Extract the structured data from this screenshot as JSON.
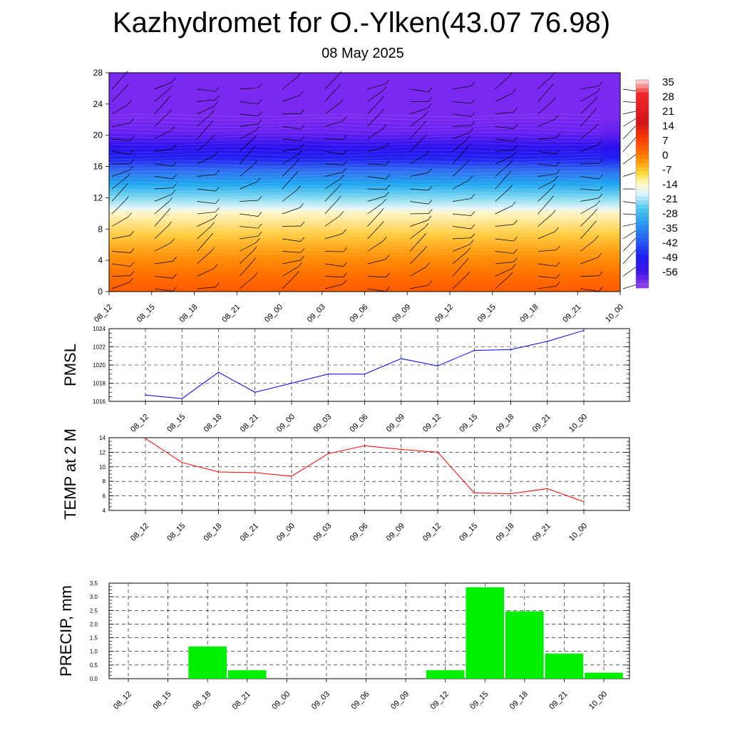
{
  "header": {
    "title": "Kazhydromet for O.-Ylken(43.07 76.98)",
    "date": "08 May 2025"
  },
  "x_labels": [
    "08_12",
    "08_15",
    "08_18",
    "08_21",
    "09_00",
    "09_03",
    "09_06",
    "09_09",
    "09_12",
    "09_15",
    "09_18",
    "09_21",
    "10_00"
  ],
  "colors": {
    "pmsl_line": "#0000ff",
    "temp_line": "#ff0000",
    "precip_bar": "#00ee00"
  },
  "chart_data": [
    {
      "type": "heatmap",
      "x_labels": [
        "08_12",
        "08_15",
        "08_18",
        "08_21",
        "09_00",
        "09_03",
        "09_06",
        "09_09",
        "09_12",
        "09_15",
        "09_18",
        "09_21",
        "10_00"
      ],
      "y_ticks": [
        "0",
        "4",
        "8",
        "12",
        "16",
        "20",
        "24",
        "28"
      ],
      "ylim": [
        0,
        28
      ],
      "colorbar_labels": [
        "35",
        "28",
        "21",
        "14",
        "7",
        "0",
        "-7",
        "-14",
        "-21",
        "-28",
        "-35",
        "-42",
        "-49",
        "-56"
      ],
      "overlay": "wind barbs"
    },
    {
      "type": "line",
      "ylabel": "PMSL",
      "ylim": [
        1016,
        1024
      ],
      "y_ticks": [
        "1016",
        "1018",
        "1020",
        "1022",
        "1024"
      ],
      "categories": [
        "08_12",
        "08_15",
        "08_18",
        "08_21",
        "09_00",
        "09_03",
        "09_06",
        "09_09",
        "09_12",
        "09_15",
        "09_18",
        "09_21",
        "10_00"
      ],
      "values": [
        1016.7,
        1016.3,
        1019.2,
        1017.0,
        1018.0,
        1019.0,
        1019.0,
        1020.7,
        1019.9,
        1021.6,
        1021.7,
        1022.6,
        1023.8
      ]
    },
    {
      "type": "line",
      "ylabel": "TEMP at 2 M",
      "ylim": [
        4,
        14
      ],
      "y_ticks": [
        "4",
        "6",
        "8",
        "10",
        "12",
        "14"
      ],
      "categories": [
        "08_12",
        "08_15",
        "08_18",
        "08_21",
        "09_00",
        "09_03",
        "09_06",
        "09_09",
        "09_12",
        "09_15",
        "09_18",
        "09_21",
        "10_00"
      ],
      "values": [
        13.9,
        10.6,
        9.3,
        9.2,
        8.7,
        11.8,
        12.9,
        12.4,
        12.0,
        6.4,
        6.3,
        7.0,
        5.2
      ]
    },
    {
      "type": "bar",
      "ylabel": "PRECIP, mm",
      "ylim": [
        0,
        3.5
      ],
      "y_ticks": [
        "0.0",
        "0.5",
        "1.0",
        "1.5",
        "2.0",
        "2.5",
        "3.0",
        "3.5"
      ],
      "categories": [
        "08_12",
        "08_15",
        "08_18",
        "08_21",
        "09_00",
        "09_03",
        "09_06",
        "09_09",
        "09_12",
        "09_15",
        "09_18",
        "09_21",
        "10_00"
      ],
      "values": [
        0,
        0,
        1.18,
        0.31,
        0,
        0,
        0,
        0,
        0.31,
        3.35,
        2.47,
        0.92,
        0.22
      ]
    }
  ]
}
